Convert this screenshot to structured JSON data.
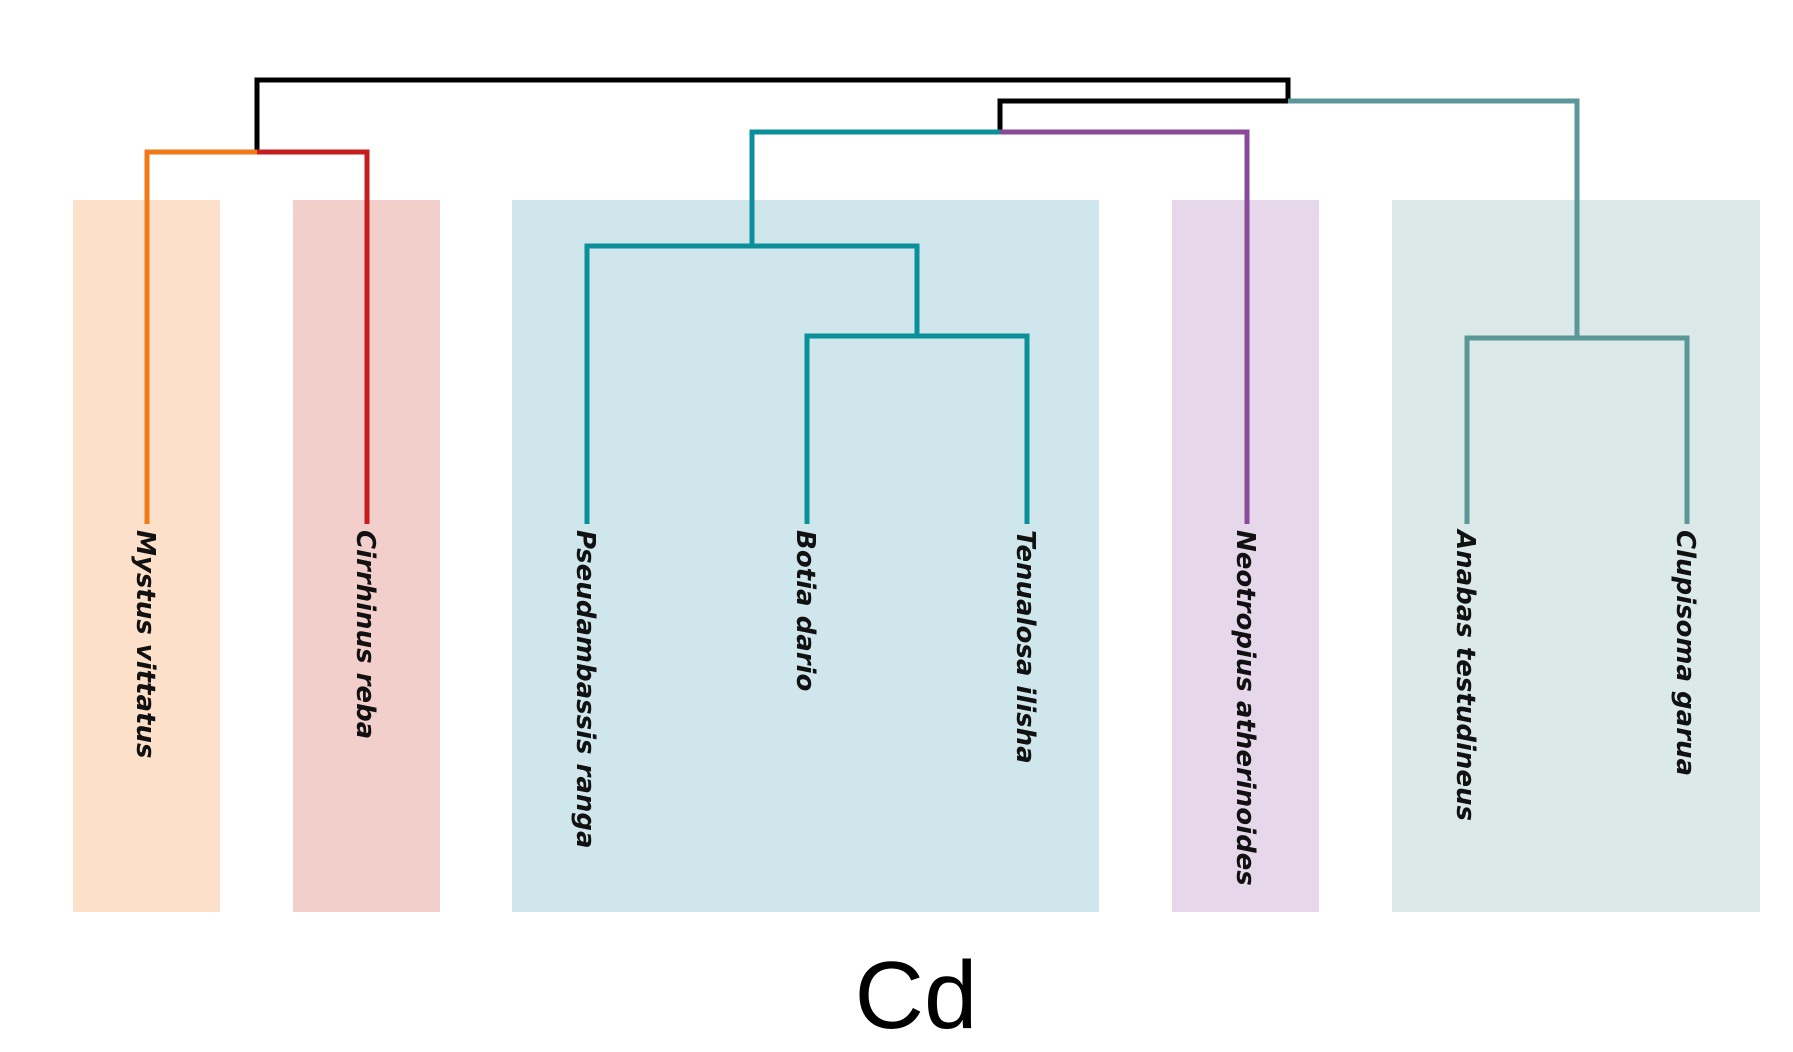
{
  "caption": "Cd",
  "colors": {
    "orange": "#f07a1a",
    "red": "#c41e1e",
    "teal": "#0b8f9a",
    "purple": "#8a4a9a",
    "slate": "#5b9698",
    "root": "#000000"
  },
  "groups": [
    {
      "id": "g1",
      "fill": "#fde0c9"
    },
    {
      "id": "g2",
      "fill": "#f2cfca"
    },
    {
      "id": "g3",
      "fill": "#cfe7ec"
    },
    {
      "id": "g4",
      "fill": "#e6d8ea"
    },
    {
      "id": "g5",
      "fill": "#dce9e9"
    }
  ],
  "leaves": [
    {
      "id": "mystus",
      "label": "Mystus vittatus"
    },
    {
      "id": "cirrhinus",
      "label": "Cirrhinus reba"
    },
    {
      "id": "pseudambassis",
      "label": "Pseudambassis ranga"
    },
    {
      "id": "botia",
      "label": "Botia dario"
    },
    {
      "id": "tenualosa",
      "label": "Tenualosa ilisha"
    },
    {
      "id": "neotropius",
      "label": "Neotropius atherinoides"
    },
    {
      "id": "anabas",
      "label": "Anabas testudineus"
    },
    {
      "id": "clupisoma",
      "label": "Clupisoma garua"
    }
  ]
}
